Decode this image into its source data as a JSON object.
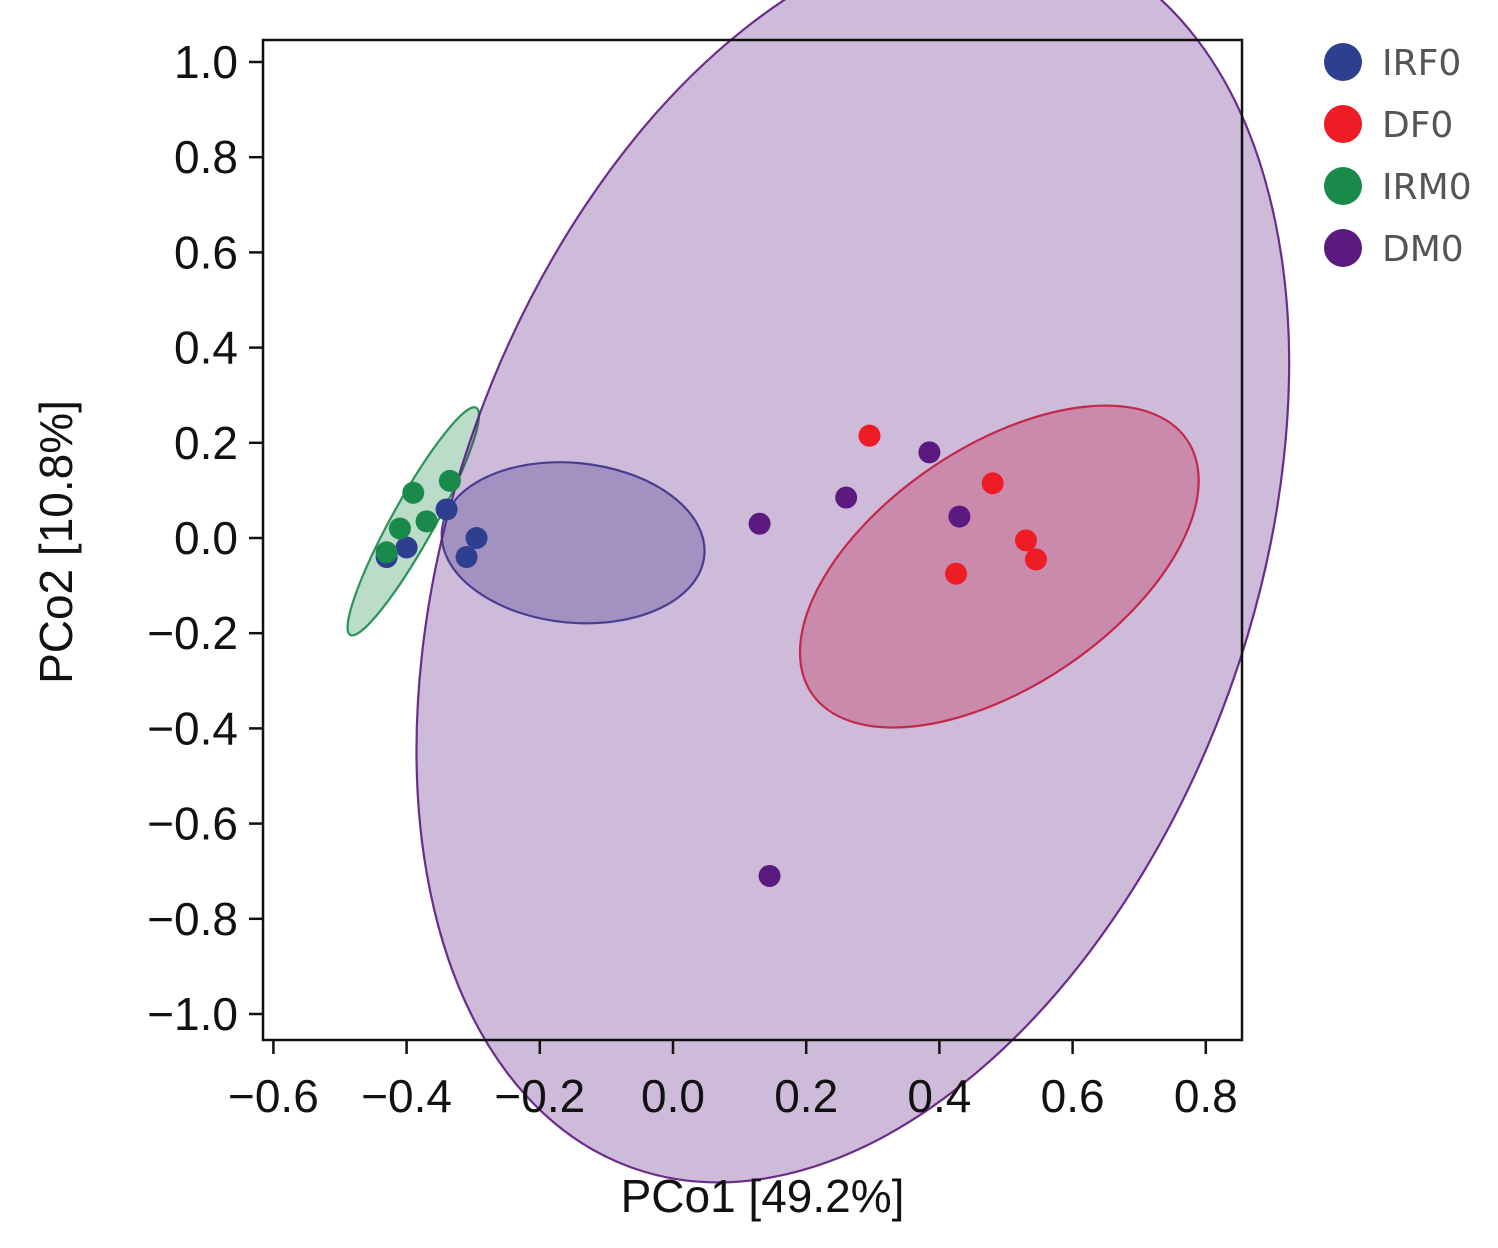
{
  "chart_data": {
    "type": "scatter",
    "title": "",
    "xlabel": "PCo1 [49.2%]",
    "ylabel": "PCo2 [10.8%]",
    "xlim": [
      -0.62,
      0.85
    ],
    "ylim": [
      -1.05,
      1.05
    ],
    "x_ticks": [
      -0.6,
      -0.4,
      -0.2,
      0.0,
      0.2,
      0.4,
      0.6,
      0.8
    ],
    "x_tick_labels": [
      "−0.6",
      "−0.4",
      "−0.2",
      "0.0",
      "0.2",
      "0.4",
      "0.6",
      "0.8"
    ],
    "y_ticks": [
      1.0,
      0.8,
      0.6,
      0.4,
      0.2,
      0.0,
      -0.2,
      -0.4,
      -0.6,
      -0.8,
      -1.0
    ],
    "y_tick_labels": [
      "1.0",
      "0.8",
      "0.6",
      "0.4",
      "0.2",
      "0.0",
      "−0.2",
      "−0.4",
      "−0.6",
      "−0.8",
      "−1.0"
    ],
    "grid": false,
    "legend_position": "top-right outside",
    "series": [
      {
        "name": "IRF0",
        "color": "#2e3f8f",
        "points": [
          [
            -0.43,
            -0.04
          ],
          [
            -0.4,
            -0.02
          ],
          [
            -0.34,
            0.06
          ],
          [
            -0.31,
            -0.04
          ],
          [
            -0.295,
            0.0
          ]
        ],
        "ellipse": {
          "cx": -0.15,
          "cy": -0.01,
          "rx": 0.198,
          "ry": 0.12,
          "angle": 5.6
        }
      },
      {
        "name": "DF0",
        "color": "#ee1c25",
        "points": [
          [
            0.295,
            0.215
          ],
          [
            0.48,
            0.115
          ],
          [
            0.53,
            -0.005
          ],
          [
            0.545,
            -0.045
          ],
          [
            0.425,
            -0.075
          ]
        ],
        "ellipse": {
          "cx": 0.49,
          "cy": -0.06,
          "rx": 0.34,
          "ry": 0.18,
          "angle": -34
        }
      },
      {
        "name": "IRM0",
        "color": "#1a8a4a",
        "points": [
          [
            -0.43,
            -0.03
          ],
          [
            -0.41,
            0.02
          ],
          [
            -0.39,
            0.095
          ],
          [
            -0.37,
            0.035
          ],
          [
            -0.335,
            0.12
          ]
        ],
        "ellipse": {
          "cx": -0.39,
          "cy": 0.035,
          "rx": 0.195,
          "ry": 0.032,
          "angle": -61
        }
      },
      {
        "name": "DM0",
        "color": "#5c1a80",
        "points": [
          [
            0.13,
            0.03
          ],
          [
            0.26,
            0.085
          ],
          [
            0.385,
            0.18
          ],
          [
            0.43,
            0.045
          ],
          [
            0.145,
            -0.71
          ]
        ],
        "ellipse": {
          "cx": 0.27,
          "cy": -0.04,
          "rx": 0.975,
          "ry": 0.6,
          "angle": -70
        }
      }
    ]
  }
}
